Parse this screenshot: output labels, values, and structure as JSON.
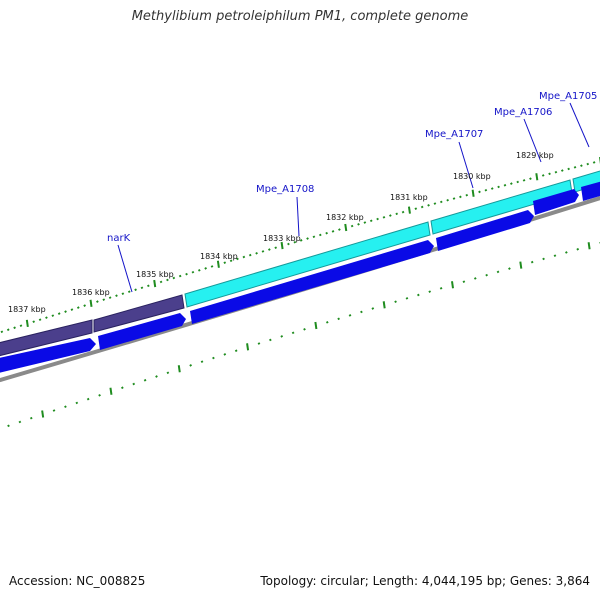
{
  "title": "Methylibium petroleiphilum PM1, complete genome",
  "footer": {
    "accession": "Accession: NC_008825",
    "stats": "Topology: circular; Length: 4,044,195 bp; Genes: 3,864"
  },
  "colors": {
    "forward_gene_dark": "#4b3f8c",
    "forward_gene_cyan": "#26f0f0",
    "reverse_gene": "#0a0ae6",
    "backbone": "#8a8a8a",
    "ticks": "#1f8c1f",
    "gene_label": "#1414c8"
  },
  "scale": {
    "ticks": [
      {
        "label": "1837 kbp"
      },
      {
        "label": "1836 kbp"
      },
      {
        "label": "1835 kbp"
      },
      {
        "label": "1834 kbp"
      },
      {
        "label": "1833 kbp"
      },
      {
        "label": "1832 kbp"
      },
      {
        "label": "1831 kbp"
      },
      {
        "label": "1830 kbp"
      },
      {
        "label": "1829 kbp"
      }
    ]
  },
  "genes": [
    {
      "label": "narK"
    },
    {
      "label": "Mpe_A1708"
    },
    {
      "label": "Mpe_A1707"
    },
    {
      "label": "Mpe_A1706"
    },
    {
      "label": "Mpe_A1705"
    }
  ]
}
